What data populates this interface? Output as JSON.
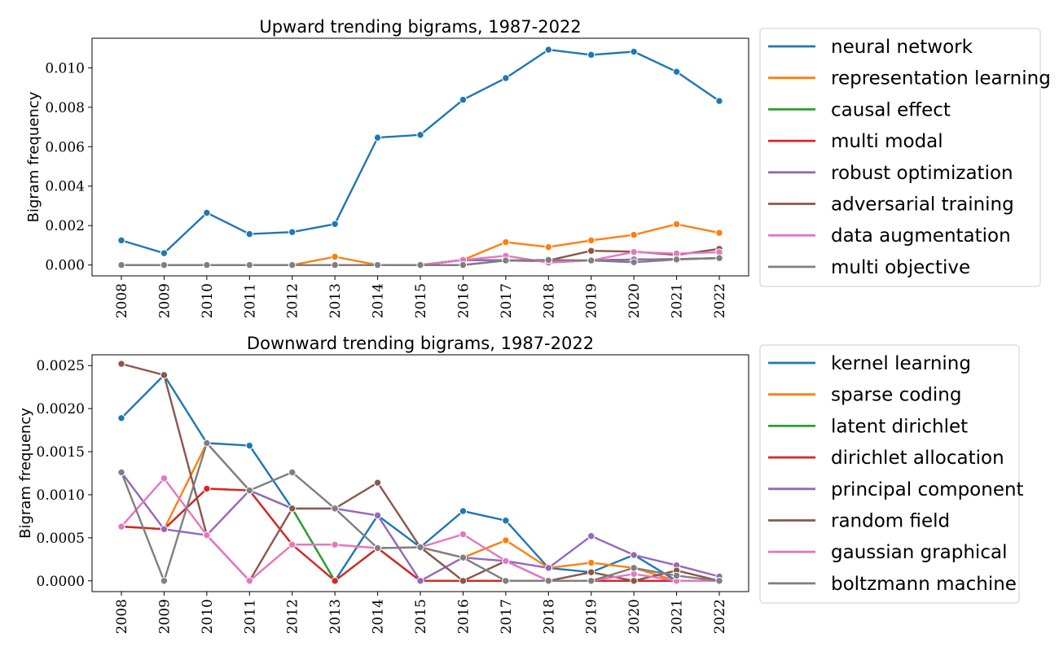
{
  "chart_data": [
    {
      "type": "line",
      "title": "Upward trending bigrams, 1987-2022",
      "xlabel": "",
      "ylabel": "Bigram frequency",
      "x": [
        2008,
        2009,
        2010,
        2011,
        2012,
        2013,
        2014,
        2015,
        2016,
        2017,
        2018,
        2019,
        2020,
        2021,
        2022
      ],
      "ylim": [
        -0.00055,
        0.0115
      ],
      "yticks": [
        "0.000",
        "0.002",
        "0.004",
        "0.006",
        "0.008",
        "0.010"
      ],
      "ytick_values": [
        0,
        0.002,
        0.004,
        0.006,
        0.008,
        0.01
      ],
      "grid": false,
      "legend": "outside-right",
      "series": [
        {
          "name": "neural network",
          "color": "#1f77b4",
          "values": [
            0.00125,
            0.0006,
            0.00265,
            0.00157,
            0.00167,
            0.00208,
            0.00646,
            0.0066,
            0.00838,
            0.00948,
            0.01092,
            0.01066,
            0.01082,
            0.0098,
            0.00832
          ]
        },
        {
          "name": "representation learning",
          "color": "#ff7f0e",
          "values": [
            0,
            0,
            0,
            0,
            0,
            0.00042,
            0,
            0,
            0.00026,
            0.00116,
            0.00091,
            0.00125,
            0.00153,
            0.00207,
            0.00163
          ]
        },
        {
          "name": "causal effect",
          "color": "#2ca02c",
          "values": [
            0,
            0,
            0,
            0,
            0,
            0,
            0,
            0,
            0.00026,
            0.00023,
            0.00023,
            0.00023,
            0.00028,
            0.0003,
            0.00035
          ]
        },
        {
          "name": "multi modal",
          "color": "#d62728",
          "values": [
            0,
            0,
            0,
            0,
            0,
            0,
            0,
            0,
            0.00026,
            0.00023,
            0.0002,
            0.00023,
            0.00028,
            0.0003,
            0.00035
          ]
        },
        {
          "name": "robust optimization",
          "color": "#9467bd",
          "values": [
            0,
            0,
            0,
            0,
            0,
            0,
            0,
            0,
            0.00026,
            0.00023,
            0.0002,
            0.00023,
            0.00028,
            0.0003,
            0.00035
          ]
        },
        {
          "name": "adversarial training",
          "color": "#8c564b",
          "values": [
            0,
            0,
            0,
            0,
            0,
            0,
            0,
            0,
            0,
            0.00023,
            0.00023,
            0.00072,
            0.00068,
            0.00051,
            0.00082
          ]
        },
        {
          "name": "data augmentation",
          "color": "#e377c2",
          "values": [
            0,
            0,
            0,
            0,
            0,
            0,
            0,
            0,
            0.00026,
            0.00047,
            0.00012,
            0.00023,
            0.00066,
            0.00058,
            0.00065
          ]
        },
        {
          "name": "multi objective",
          "color": "#7f7f7f",
          "values": [
            0,
            0,
            0,
            0,
            0,
            0,
            0,
            0,
            0,
            0.00023,
            0.00026,
            0.00023,
            0.00014,
            0.00028,
            0.00035
          ]
        }
      ]
    },
    {
      "type": "line",
      "title": "Downward trending bigrams, 1987-2022",
      "xlabel": "",
      "ylabel": "Bigram frequency",
      "x": [
        2008,
        2009,
        2010,
        2011,
        2012,
        2013,
        2014,
        2015,
        2016,
        2017,
        2018,
        2019,
        2020,
        2021,
        2022
      ],
      "ylim": [
        -0.000125,
        0.002625
      ],
      "yticks": [
        "0.0000",
        "0.0005",
        "0.0010",
        "0.0015",
        "0.0020",
        "0.0025"
      ],
      "ytick_values": [
        0,
        0.0005,
        0.001,
        0.0015,
        0.002,
        0.0025
      ],
      "grid": false,
      "legend": "outside-right",
      "series": [
        {
          "name": "kernel learning",
          "color": "#1f77b4",
          "values": [
            0.00189,
            0.00239,
            0.0016,
            0.00157,
            0.00084,
            0,
            0.00076,
            0.00039,
            0.00081,
            0.0007,
            0.00015,
            0.0001,
            0.0003,
            0,
            0
          ]
        },
        {
          "name": "sparse coding",
          "color": "#ff7f0e",
          "values": [
            0.00063,
            0.0006,
            0.0016,
            0.00105,
            0.00042,
            0.00042,
            0.00038,
            0.00039,
            0.00027,
            0.00047,
            0.00015,
            0.00021,
            0.00015,
            0,
            0
          ]
        },
        {
          "name": "latent dirichlet",
          "color": "#2ca02c",
          "values": [
            0.00063,
            0.0006,
            0.00107,
            0.00105,
            0.00084,
            0,
            0.00038,
            0,
            0,
            0,
            0,
            0,
            0,
            0,
            0
          ]
        },
        {
          "name": "dirichlet allocation",
          "color": "#d62728",
          "values": [
            0.00063,
            0.0006,
            0.00107,
            0.00105,
            0.00042,
            0,
            0.00038,
            0,
            0,
            0,
            0,
            0,
            0,
            0,
            0
          ]
        },
        {
          "name": "principal component",
          "color": "#9467bd",
          "values": [
            0.00126,
            0.0006,
            0.00053,
            0.00105,
            0.00084,
            0.00084,
            0.00076,
            0,
            0.00027,
            0.00023,
            0.00015,
            0.00052,
            0.0003,
            0.00018,
            5e-05
          ]
        },
        {
          "name": "random field",
          "color": "#8c564b",
          "values": [
            0.00252,
            0.00239,
            0.00053,
            0,
            0.00084,
            0.00084,
            0.00114,
            0.00039,
            0,
            0.00023,
            0,
            0.0001,
            0,
            0.00012,
            0
          ]
        },
        {
          "name": "gaussian graphical",
          "color": "#e377c2",
          "values": [
            0.00063,
            0.00119,
            0.00053,
            0,
            0.00042,
            0.00042,
            0.00038,
            0.00039,
            0.00054,
            0.00023,
            0,
            0,
            8e-05,
            0,
            0
          ]
        },
        {
          "name": "boltzmann machine",
          "color": "#7f7f7f",
          "values": [
            0.00126,
            0,
            0.0016,
            0.00105,
            0.00126,
            0.00084,
            0.00038,
            0.00039,
            0.00027,
            0,
            0,
            0,
            0.00015,
            6e-05,
            0
          ]
        }
      ]
    }
  ]
}
